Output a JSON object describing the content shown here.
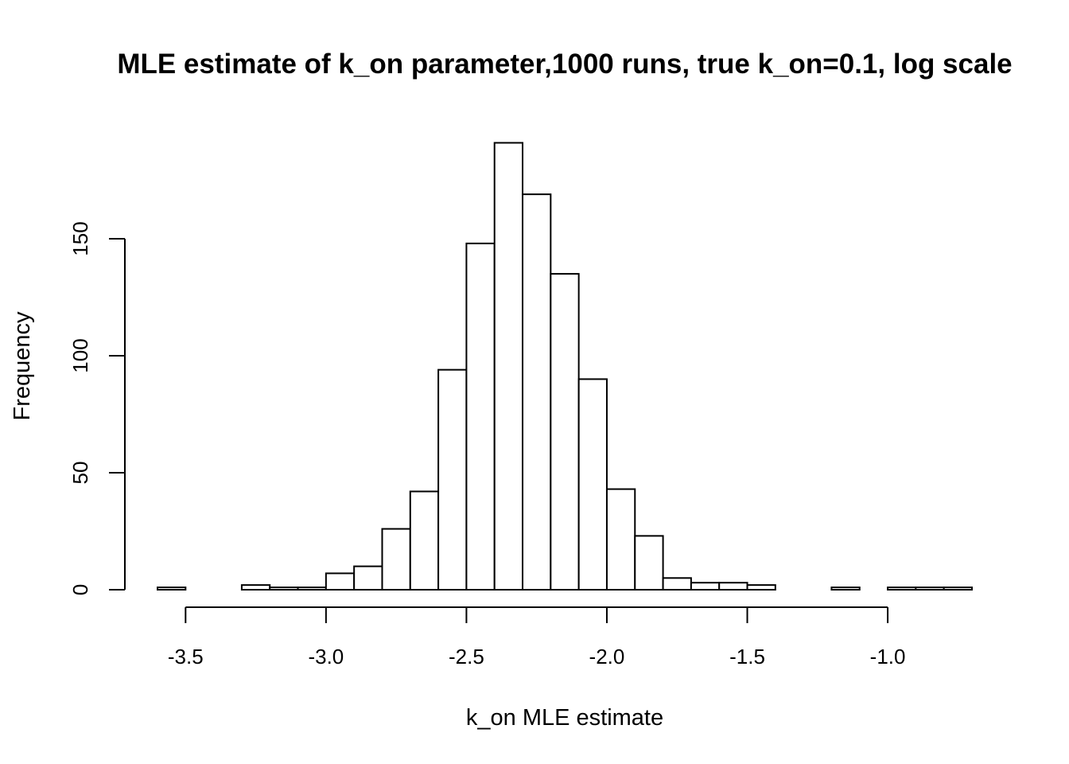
{
  "chart_data": {
    "type": "bar",
    "title": "MLE estimate of k_on parameter,1000 runs, true k_on=0.1, log scale",
    "xlabel": "k_on MLE estimate",
    "ylabel": "Frequency",
    "bin_width": 0.1,
    "bin_start": -3.6,
    "xlim": [
      -3.6,
      -0.7
    ],
    "ylim": [
      0,
      190
    ],
    "x_ticks": [
      "-3.5",
      "-3.0",
      "-2.5",
      "-2.0",
      "-1.5",
      "-1.0"
    ],
    "y_ticks": [
      "0",
      "50",
      "100",
      "150"
    ],
    "grid": false,
    "bins": [
      {
        "x0": -3.6,
        "x1": -3.5,
        "count": 1
      },
      {
        "x0": -3.5,
        "x1": -3.4,
        "count": 0
      },
      {
        "x0": -3.4,
        "x1": -3.3,
        "count": 0
      },
      {
        "x0": -3.3,
        "x1": -3.2,
        "count": 2
      },
      {
        "x0": -3.2,
        "x1": -3.1,
        "count": 1
      },
      {
        "x0": -3.1,
        "x1": -3.0,
        "count": 1
      },
      {
        "x0": -3.0,
        "x1": -2.9,
        "count": 7
      },
      {
        "x0": -2.9,
        "x1": -2.8,
        "count": 10
      },
      {
        "x0": -2.8,
        "x1": -2.7,
        "count": 26
      },
      {
        "x0": -2.7,
        "x1": -2.6,
        "count": 42
      },
      {
        "x0": -2.6,
        "x1": -2.5,
        "count": 94
      },
      {
        "x0": -2.5,
        "x1": -2.4,
        "count": 148
      },
      {
        "x0": -2.4,
        "x1": -2.3,
        "count": 191
      },
      {
        "x0": -2.3,
        "x1": -2.2,
        "count": 169
      },
      {
        "x0": -2.2,
        "x1": -2.1,
        "count": 135
      },
      {
        "x0": -2.1,
        "x1": -2.0,
        "count": 90
      },
      {
        "x0": -2.0,
        "x1": -1.9,
        "count": 43
      },
      {
        "x0": -1.9,
        "x1": -1.8,
        "count": 23
      },
      {
        "x0": -1.8,
        "x1": -1.7,
        "count": 5
      },
      {
        "x0": -1.7,
        "x1": -1.6,
        "count": 3
      },
      {
        "x0": -1.6,
        "x1": -1.5,
        "count": 3
      },
      {
        "x0": -1.5,
        "x1": -1.4,
        "count": 2
      },
      {
        "x0": -1.4,
        "x1": -1.3,
        "count": 0
      },
      {
        "x0": -1.3,
        "x1": -1.2,
        "count": 0
      },
      {
        "x0": -1.2,
        "x1": -1.1,
        "count": 1
      },
      {
        "x0": -1.1,
        "x1": -1.0,
        "count": 0
      },
      {
        "x0": -1.0,
        "x1": -0.9,
        "count": 1
      },
      {
        "x0": -0.9,
        "x1": -0.8,
        "count": 1
      },
      {
        "x0": -0.8,
        "x1": -0.7,
        "count": 1
      }
    ]
  }
}
